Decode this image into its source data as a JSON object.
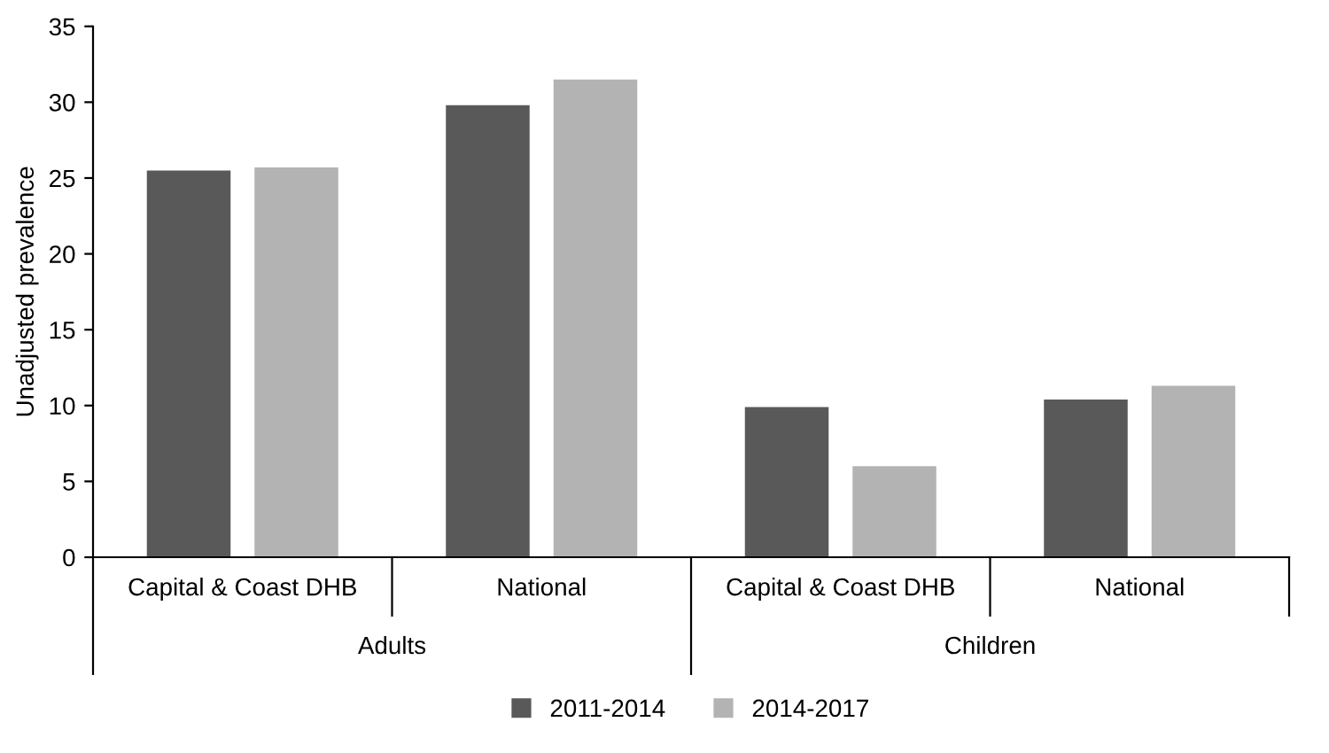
{
  "chart_data": {
    "type": "bar",
    "ylabel": "Unadjusted prevalence",
    "categories": [
      "Capital & Coast DHB",
      "National",
      "Capital & Coast DHB",
      "National"
    ],
    "annotations": [
      "Adults",
      "Children"
    ],
    "series": [
      {
        "name": "2011-2014",
        "color": "#595959",
        "values": [
          25.5,
          29.8,
          9.9,
          10.4
        ]
      },
      {
        "name": "2014-2017",
        "color": "#b3b3b3",
        "values": [
          25.7,
          31.5,
          6.0,
          11.3
        ]
      }
    ],
    "ylim": [
      0,
      35
    ],
    "yticks": [
      0,
      5,
      10,
      15,
      20,
      25,
      30,
      35
    ],
    "grid": false,
    "legend": "bottom"
  }
}
